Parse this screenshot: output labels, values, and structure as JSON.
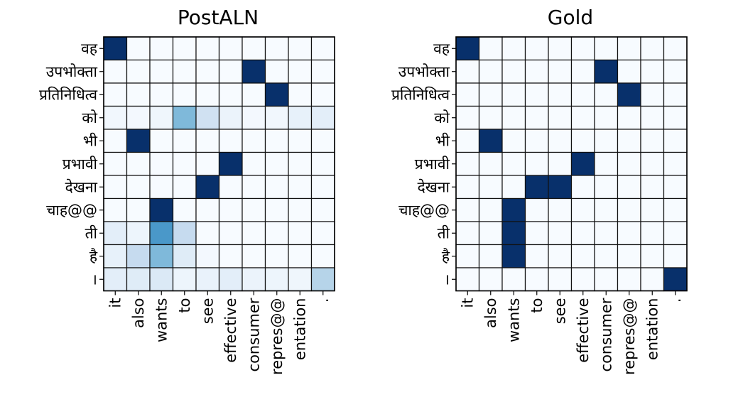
{
  "chart_data": [
    {
      "type": "heatmap",
      "title": "PostALN",
      "colormap": "Blues",
      "x": [
        "it",
        "also",
        "wants",
        "to",
        "see",
        "effective",
        "consumer",
        "repres@@",
        "entation",
        "."
      ],
      "y": [
        "वह",
        "उपभोक्ता",
        "प्रतिनिधित्व",
        "को",
        "भी",
        "प्रभावी",
        "देखना",
        "चाह@@",
        "ती",
        "है",
        "।"
      ],
      "values": [
        [
          1.0,
          0.0,
          0.0,
          0.0,
          0.0,
          0.0,
          0.0,
          0.0,
          0.0,
          0.0
        ],
        [
          0.0,
          0.0,
          0.0,
          0.0,
          0.0,
          0.0,
          1.0,
          0.0,
          0.0,
          0.0
        ],
        [
          0.0,
          0.0,
          0.0,
          0.0,
          0.0,
          0.0,
          0.0,
          1.0,
          0.0,
          0.0
        ],
        [
          0.03,
          0.02,
          0.04,
          0.45,
          0.2,
          0.06,
          0.02,
          0.03,
          0.08,
          0.1
        ],
        [
          0.0,
          1.0,
          0.0,
          0.0,
          0.0,
          0.0,
          0.0,
          0.0,
          0.0,
          0.0
        ],
        [
          0.0,
          0.0,
          0.0,
          0.0,
          0.0,
          1.0,
          0.0,
          0.0,
          0.0,
          0.0
        ],
        [
          0.0,
          0.0,
          0.0,
          0.0,
          1.0,
          0.0,
          0.0,
          0.0,
          0.0,
          0.0
        ],
        [
          0.0,
          0.0,
          1.0,
          0.0,
          0.0,
          0.0,
          0.0,
          0.0,
          0.0,
          0.0
        ],
        [
          0.1,
          0.05,
          0.6,
          0.25,
          0.0,
          0.0,
          0.0,
          0.0,
          0.0,
          0.0
        ],
        [
          0.08,
          0.25,
          0.45,
          0.12,
          0.02,
          0.0,
          0.0,
          0.0,
          0.0,
          0.0
        ],
        [
          0.1,
          0.12,
          0.14,
          0.05,
          0.07,
          0.1,
          0.06,
          0.05,
          0.04,
          0.3
        ]
      ]
    },
    {
      "type": "heatmap",
      "title": "Gold",
      "colormap": "Blues",
      "x": [
        "it",
        "also",
        "wants",
        "to",
        "see",
        "effective",
        "consumer",
        "repres@@",
        "entation",
        "."
      ],
      "y": [
        "वह",
        "उपभोक्ता",
        "प्रतिनिधित्व",
        "को",
        "भी",
        "प्रभावी",
        "देखना",
        "चाह@@",
        "ती",
        "है",
        "।"
      ],
      "values": [
        [
          1,
          0,
          0,
          0,
          0,
          0,
          0,
          0,
          0,
          0
        ],
        [
          0,
          0,
          0,
          0,
          0,
          0,
          1,
          0,
          0,
          0
        ],
        [
          0,
          0,
          0,
          0,
          0,
          0,
          0,
          1,
          0,
          0
        ],
        [
          0,
          0,
          0,
          0,
          0,
          0,
          0,
          0,
          0,
          0
        ],
        [
          0,
          1,
          0,
          0,
          0,
          0,
          0,
          0,
          0,
          0
        ],
        [
          0,
          0,
          0,
          0,
          0,
          1,
          0,
          0,
          0,
          0
        ],
        [
          0,
          0,
          0,
          1,
          1,
          0,
          0,
          0,
          0,
          0
        ],
        [
          0,
          0,
          1,
          0,
          0,
          0,
          0,
          0,
          0,
          0
        ],
        [
          0,
          0,
          1,
          0,
          0,
          0,
          0,
          0,
          0,
          0
        ],
        [
          0,
          0,
          1,
          0,
          0,
          0,
          0,
          0,
          0,
          0
        ],
        [
          0,
          0,
          0,
          0,
          0,
          0,
          0,
          0,
          0,
          1
        ]
      ]
    }
  ]
}
